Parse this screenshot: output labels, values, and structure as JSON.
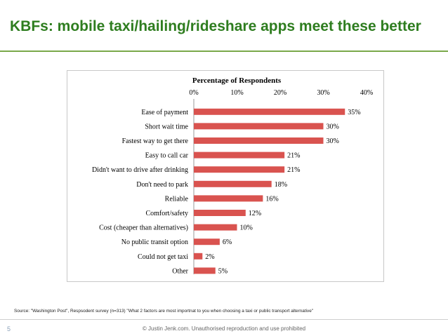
{
  "slide": {
    "title": "KBFs: mobile taxi/hailing/rideshare apps meet these better",
    "source": "Source: \"Washington Post\", Respsodent survey (n=313) \"What 2 factors are most importnat to you when choosing a taxi or public transport alternative\"",
    "page_number": "5",
    "copyright": "© Justin Jenk.com. Unauthorised reproduction and use prohibited"
  },
  "colors": {
    "bar": "#d9534f",
    "title": "#2e7d1f"
  },
  "chart_data": {
    "type": "bar",
    "orientation": "horizontal",
    "title": "Percentage of Respondents",
    "categories": [
      "Ease of payment",
      "Short wait time",
      "Fastest way to get there",
      "Easy to call car",
      "Didn't want to drive after drinking",
      "Don't need to park",
      "Reliable",
      "Comfort/safety",
      "Cost (cheaper than alternatives)",
      "No public transit option",
      "Could not get taxi",
      "Other"
    ],
    "values": [
      35,
      30,
      30,
      21,
      21,
      18,
      16,
      12,
      10,
      6,
      2,
      5
    ],
    "value_labels": [
      "35%",
      "30%",
      "30%",
      "21%",
      "21%",
      "18%",
      "16%",
      "12%",
      "10%",
      "6%",
      "2%",
      "5%"
    ],
    "xlim": [
      0,
      40
    ],
    "ticks": [
      "0%",
      "10%",
      "20%",
      "30%",
      "40%"
    ],
    "grid": false,
    "axis_position": "top"
  }
}
